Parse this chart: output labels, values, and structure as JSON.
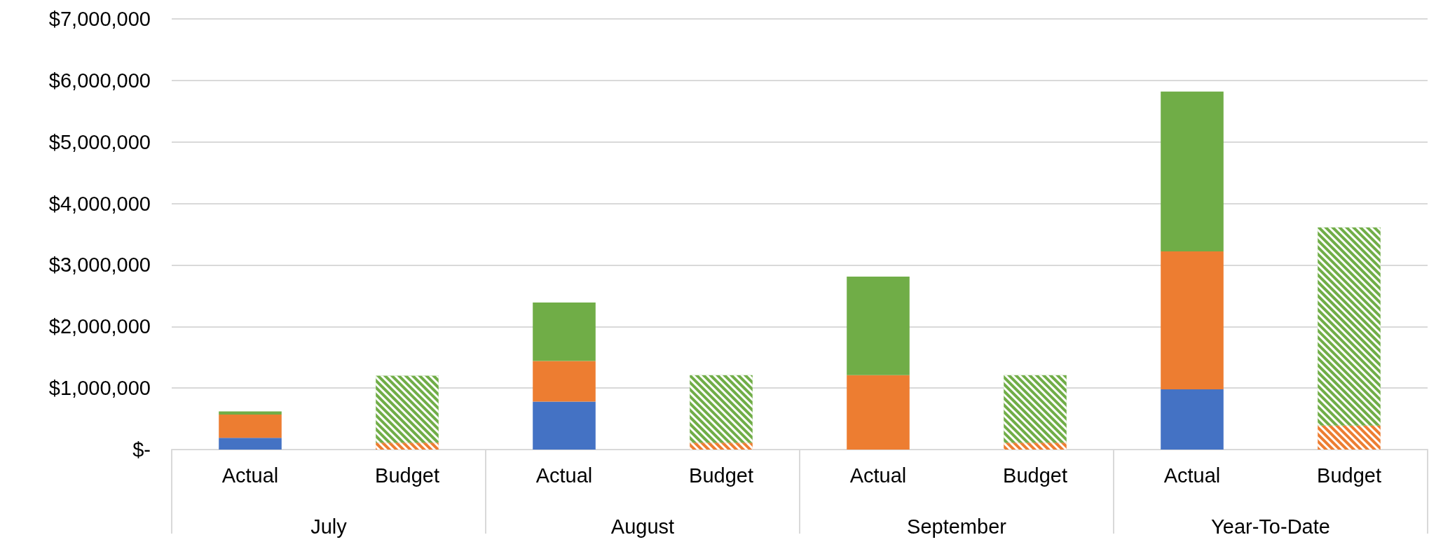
{
  "chart_data": {
    "type": "bar",
    "stacked": true,
    "categories": [
      "Actual",
      "Budget",
      "Actual",
      "Budget",
      "Actual",
      "Budget",
      "Actual",
      "Budget"
    ],
    "series": [
      {
        "color": "#4472c4",
        "values": [
          190000,
          0,
          780000,
          0,
          0,
          0,
          980000,
          0
        ]
      },
      {
        "color": "#ed7d31",
        "values": [
          380000,
          110000,
          660000,
          110000,
          1210000,
          110000,
          2240000,
          390000
        ]
      },
      {
        "color": "#70ad47",
        "values": [
          50000,
          1090000,
          950000,
          1100000,
          1600000,
          1100000,
          2600000,
          3220000
        ]
      }
    ],
    "annotations": [
      "July",
      "August",
      "September",
      "Year-To-Date"
    ],
    "ylim": [
      0,
      7000000
    ],
    "yticks": [
      {
        "value": 0,
        "label": "$-"
      },
      {
        "value": 1000000,
        "label": "$1,000,000"
      },
      {
        "value": 2000000,
        "label": "$2,000,000"
      },
      {
        "value": 3000000,
        "label": "$3,000,000"
      },
      {
        "value": 4000000,
        "label": "$4,000,000"
      },
      {
        "value": 5000000,
        "label": "$5,000,000"
      },
      {
        "value": 6000000,
        "label": "$6,000,000"
      },
      {
        "value": 7000000,
        "label": "$7,000,000"
      }
    ],
    "grid": "y"
  }
}
